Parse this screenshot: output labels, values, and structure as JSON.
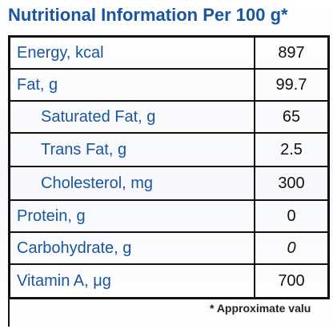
{
  "title": "Nutritional Information Per 100 g*",
  "rows": [
    {
      "label": "Energy, kcal",
      "value": "897"
    },
    {
      "label": "Fat, g",
      "value": "99.7"
    },
    {
      "label": "Saturated Fat, g",
      "value": "65"
    },
    {
      "label": "Trans Fat, g",
      "value": "2.5"
    },
    {
      "label": "Cholesterol, mg",
      "value": "300"
    },
    {
      "label": "Protein, g",
      "value": "0"
    },
    {
      "label": "Carbohydrate, g",
      "value": "0"
    },
    {
      "label": "Vitamin A, μg",
      "value": "700"
    }
  ],
  "footnote": "* Approximate valu",
  "colors": {
    "label_text": "#1a55a0",
    "value_text": "#111111",
    "border": "#111111",
    "background": "#ffffff"
  }
}
